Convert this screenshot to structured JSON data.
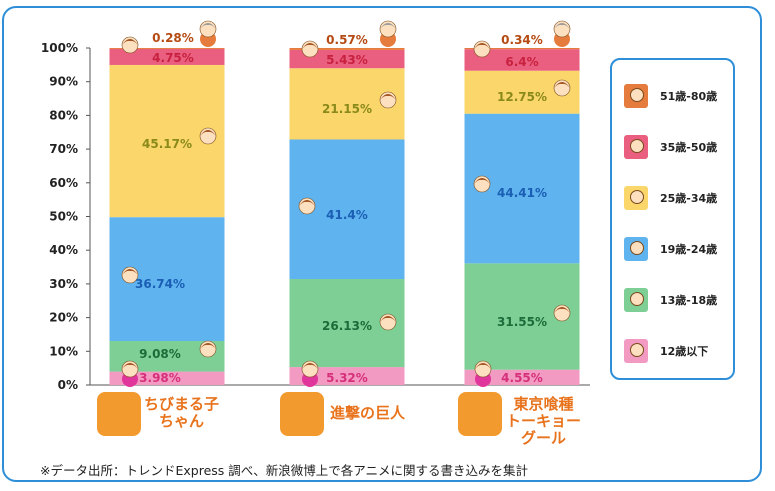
{
  "chart_data": {
    "type": "bar",
    "stacked": true,
    "ylim": [
      0,
      100
    ],
    "y_ticks": [
      "0%",
      "10%",
      "20%",
      "30%",
      "40%",
      "50%",
      "60%",
      "70%",
      "80%",
      "90%",
      "100%"
    ],
    "categories": [
      "ちびまる子\nちゃん",
      "進撃の巨人",
      "東京喰種\nトーキョー\nグール"
    ],
    "series": [
      {
        "name": "12歳以下",
        "color": "#f29ac2",
        "label_color": "#d6307a",
        "values": [
          3.98,
          5.32,
          4.55
        ],
        "labels": [
          "3.98%",
          "5.32%",
          "4.55%"
        ]
      },
      {
        "name": "13歳-18歳",
        "color": "#7dcf95",
        "label_color": "#1e6b3a",
        "values": [
          9.08,
          26.13,
          31.55
        ],
        "labels": [
          "9.08%",
          "26.13%",
          "31.55%"
        ]
      },
      {
        "name": "19歳-24歳",
        "color": "#5fb3ef",
        "label_color": "#1a5fb4",
        "values": [
          36.74,
          41.4,
          44.41
        ],
        "labels": [
          "36.74%",
          "41.4%",
          "44.41%"
        ]
      },
      {
        "name": "25歳-34歳",
        "color": "#fad66b",
        "label_color": "#8a8a1a",
        "values": [
          45.17,
          21.15,
          12.75
        ],
        "labels": [
          "45.17%",
          "21.15%",
          "12.75%"
        ]
      },
      {
        "name": "35歳-50歳",
        "color": "#ea5f7f",
        "label_color": "#c8213f",
        "values": [
          4.75,
          5.43,
          6.4
        ],
        "labels": [
          "4.75%",
          "5.43%",
          "6.4%"
        ]
      },
      {
        "name": "51歳-80歳",
        "color": "#e57b3c",
        "label_color": "#b54a12",
        "values": [
          0.28,
          0.57,
          0.34
        ],
        "labels": [
          "0.28%",
          "0.57%",
          "0.34%"
        ]
      }
    ],
    "legend_position": "right",
    "grid": false
  },
  "footnote": "※データ出所：トレンドExpress 調べ、新浪微博上で各アニメに関する書き込みを集計"
}
